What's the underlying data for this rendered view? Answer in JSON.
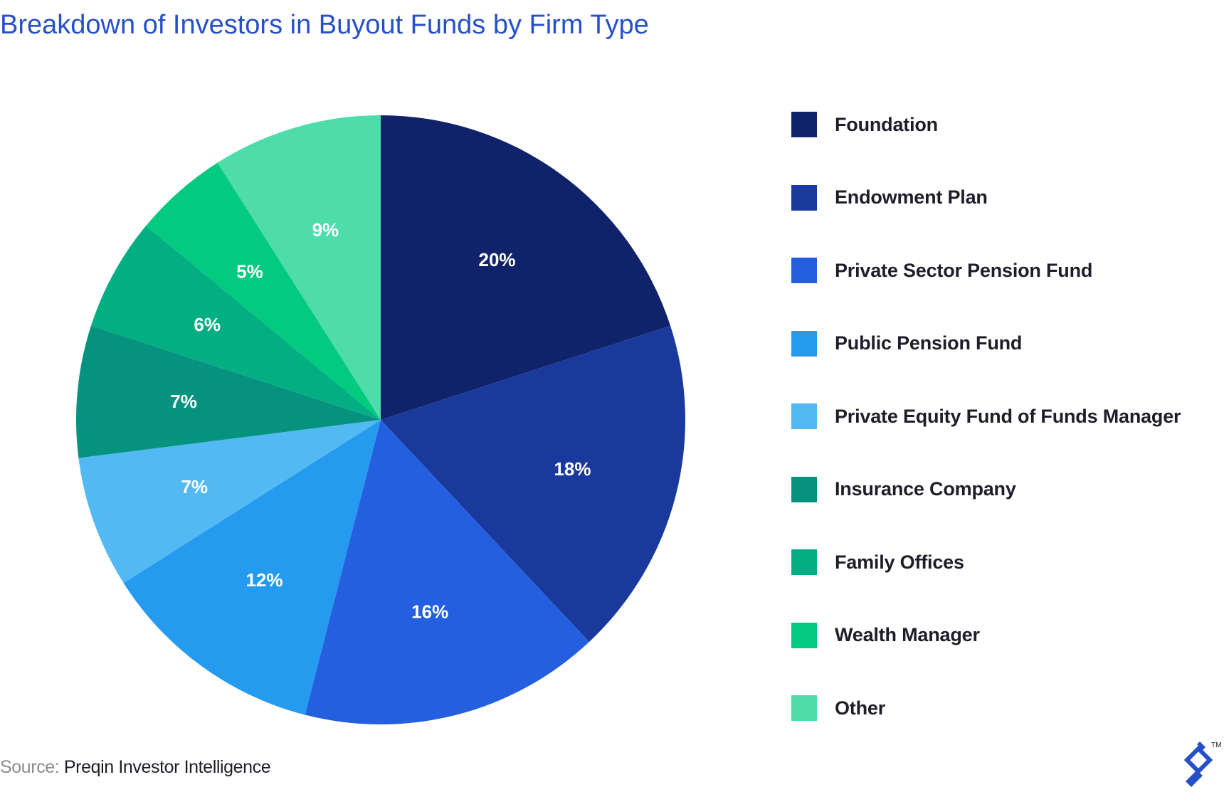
{
  "title": "Breakdown of Investors in Buyout Funds by Firm Type",
  "source": {
    "prefix": "Source:",
    "text": "Preqin Investor Intelligence"
  },
  "logo": {
    "icon": "toptal-logo-icon",
    "trademark": "TM",
    "color": "#2650c9"
  },
  "chart_data": {
    "type": "pie",
    "title": "Breakdown of Investors in Buyout Funds by Firm Type",
    "legend_position": "right",
    "start_angle": "12 o'clock, clockwise",
    "categories": [
      "Foundation",
      "Endowment Plan",
      "Private Sector Pension Fund",
      "Public Pension Fund",
      "Private Equity Fund of Funds Manager",
      "Insurance Company",
      "Family Offices",
      "Wealth Manager",
      "Other"
    ],
    "values": [
      20,
      18,
      16,
      12,
      7,
      7,
      6,
      5,
      9
    ],
    "labels": [
      "20%",
      "18%",
      "16%",
      "12%",
      "7%",
      "7%",
      "6%",
      "5%",
      "9%"
    ],
    "colors": [
      "#10236a",
      "#1a399d",
      "#245fdf",
      "#249bee",
      "#52b9f3",
      "#059380",
      "#04ae83",
      "#02cb80",
      "#4ddcaa"
    ],
    "label_color": "#ffffff"
  }
}
